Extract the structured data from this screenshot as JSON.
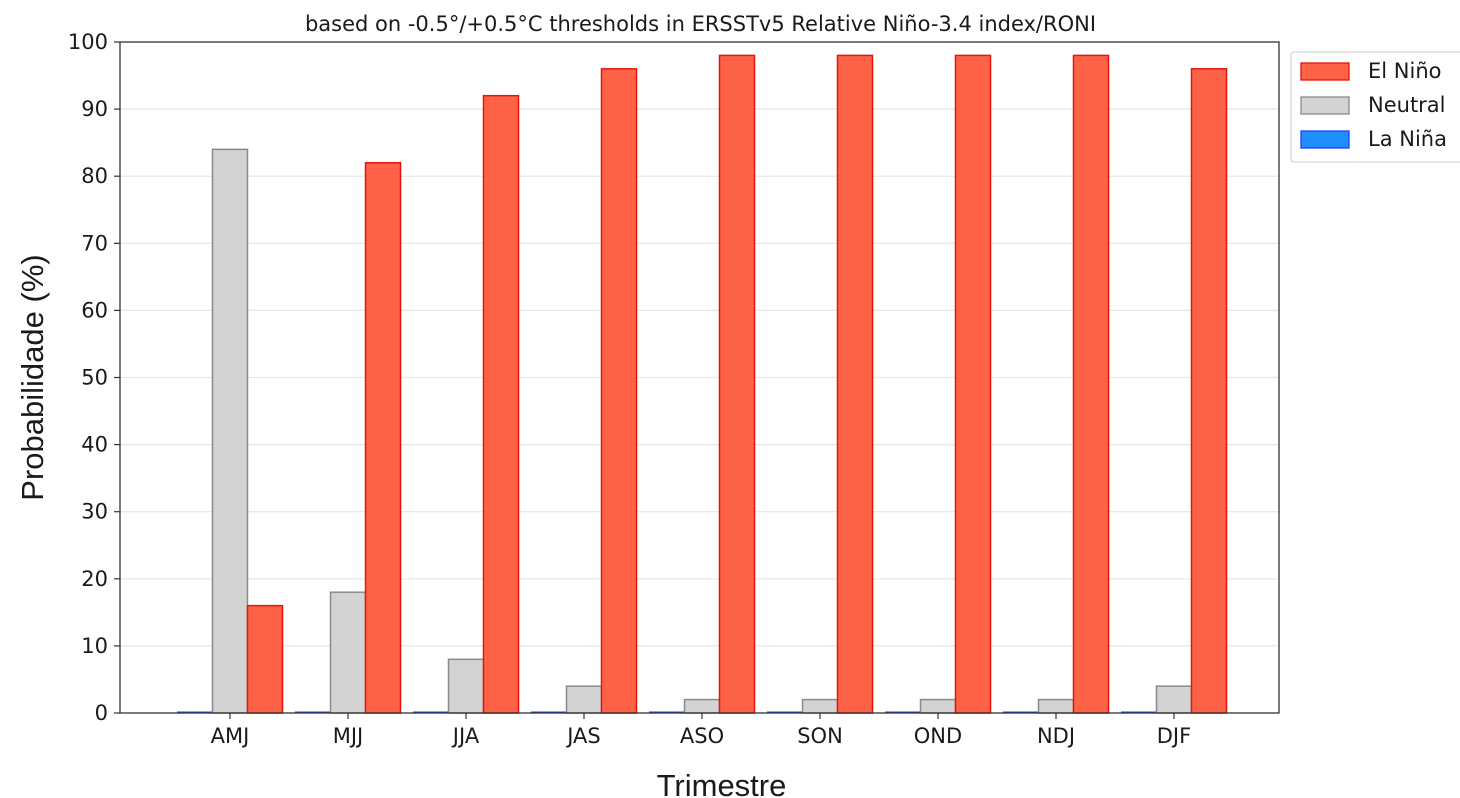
{
  "chart_data": {
    "type": "bar",
    "title": "based on -0.5°/+0.5°C thresholds in ERSSTv5 Relative Niño-3.4 index/RONI",
    "xlabel": "Trimestre",
    "ylabel": "Probabilidade (%)",
    "ylim": [
      0,
      100
    ],
    "yticks": [
      "0",
      "10",
      "20",
      "30",
      "40",
      "50",
      "60",
      "70",
      "80",
      "90",
      "100"
    ],
    "grid": true,
    "legend_position": "upper right, outside plot",
    "categories": [
      "AMJ",
      "MJJ",
      "JJA",
      "JAS",
      "ASO",
      "SON",
      "OND",
      "NDJ",
      "DJF"
    ],
    "series": [
      {
        "name": "La Niña",
        "color": "#1f8fff",
        "edge": "#1f3fff",
        "values": [
          0,
          0,
          0,
          0,
          0,
          0,
          0,
          0,
          0
        ]
      },
      {
        "name": "Neutral",
        "color": "#d3d3d3",
        "edge": "#8a8a8a",
        "values": [
          84,
          18,
          8,
          4,
          2,
          2,
          2,
          2,
          4
        ]
      },
      {
        "name": "El Niño",
        "color": "#ff6347",
        "edge": "#e8120a",
        "values": [
          16,
          82,
          92,
          96,
          98,
          98,
          98,
          98,
          96
        ]
      }
    ],
    "legend_order": [
      "El Niño",
      "Neutral",
      "La Niña"
    ]
  }
}
